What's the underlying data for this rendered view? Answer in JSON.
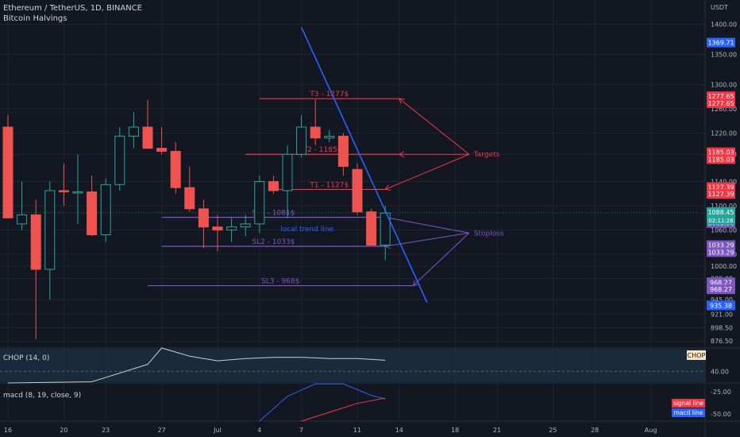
{
  "header": {
    "symbol": "Ethereum / TetherUS, 1D, BINANCE",
    "indicator": "Bitcoin Halvings",
    "currency": "USDT"
  },
  "colors": {
    "bg": "#131722",
    "grid": "#1f2433",
    "up": "#26a69a",
    "down": "#ef5350",
    "target": "#f23645",
    "stop": "#7e57c2",
    "trend": "#2962ff",
    "axis_text": "#b2b5be",
    "chop_fill": "#1c3142",
    "chop_line": "#c8ccd6",
    "signal": "#f23645",
    "macd": "#2962ff"
  },
  "chart_data": {
    "type": "candlestick",
    "ylim": [
      865,
      1440
    ],
    "y_ticks": [
      1400,
      1350,
      1300,
      1260,
      1220,
      1185,
      1140,
      1100,
      1060,
      1020,
      1000,
      980,
      945,
      921,
      898.5,
      876.5
    ],
    "y_tick_labels": [
      "1400.00",
      "1350.00",
      "1300.00",
      "1260.00",
      "1220.00",
      "1185.03",
      "1140.00",
      "1100.00",
      "1060.00",
      "1020.00",
      "1000.00",
      "980.00",
      "945.00",
      "921.00",
      "898.50",
      "876.50"
    ],
    "x_labels": [
      {
        "label": "16",
        "day": -1
      },
      {
        "label": "20",
        "day": 3
      },
      {
        "label": "23",
        "day": 6
      },
      {
        "label": "27",
        "day": 10
      },
      {
        "label": "Jul",
        "day": 14
      },
      {
        "label": "4",
        "day": 17
      },
      {
        "label": "7",
        "day": 20
      },
      {
        "label": "11",
        "day": 24
      },
      {
        "label": "14",
        "day": 27
      },
      {
        "label": "18",
        "day": 31
      },
      {
        "label": "21",
        "day": 34
      },
      {
        "label": "25",
        "day": 38
      },
      {
        "label": "28",
        "day": 41
      },
      {
        "label": "Aug",
        "day": 45
      }
    ],
    "candles": [
      {
        "day": -1,
        "o": 1230,
        "h": 1250,
        "l": 1080,
        "c": 1080
      },
      {
        "day": 0,
        "o": 1070,
        "h": 1140,
        "l": 1060,
        "c": 1085
      },
      {
        "day": 1,
        "o": 1085,
        "h": 1110,
        "l": 880,
        "c": 995
      },
      {
        "day": 2,
        "o": 995,
        "h": 1140,
        "l": 945,
        "c": 1125
      },
      {
        "day": 3,
        "o": 1125,
        "h": 1170,
        "l": 1100,
        "c": 1123
      },
      {
        "day": 4,
        "o": 1123,
        "h": 1185,
        "l": 1070,
        "c": 1123
      },
      {
        "day": 5,
        "o": 1123,
        "h": 1150,
        "l": 1050,
        "c": 1052
      },
      {
        "day": 6,
        "o": 1052,
        "h": 1145,
        "l": 1040,
        "c": 1135
      },
      {
        "day": 7,
        "o": 1135,
        "h": 1230,
        "l": 1125,
        "c": 1215
      },
      {
        "day": 8,
        "o": 1215,
        "h": 1255,
        "l": 1195,
        "c": 1230
      },
      {
        "day": 9,
        "o": 1230,
        "h": 1275,
        "l": 1200,
        "c": 1195
      },
      {
        "day": 10,
        "o": 1195,
        "h": 1230,
        "l": 1185,
        "c": 1190
      },
      {
        "day": 11,
        "o": 1190,
        "h": 1205,
        "l": 1120,
        "c": 1130
      },
      {
        "day": 12,
        "o": 1130,
        "h": 1165,
        "l": 1090,
        "c": 1095
      },
      {
        "day": 13,
        "o": 1095,
        "h": 1110,
        "l": 1030,
        "c": 1065
      },
      {
        "day": 14,
        "o": 1065,
        "h": 1085,
        "l": 1025,
        "c": 1060
      },
      {
        "day": 15,
        "o": 1060,
        "h": 1080,
        "l": 1040,
        "c": 1065
      },
      {
        "day": 16,
        "o": 1065,
        "h": 1085,
        "l": 1050,
        "c": 1070
      },
      {
        "day": 17,
        "o": 1070,
        "h": 1150,
        "l": 1055,
        "c": 1140
      },
      {
        "day": 18,
        "o": 1140,
        "h": 1150,
        "l": 1120,
        "c": 1125
      },
      {
        "day": 19,
        "o": 1125,
        "h": 1200,
        "l": 1080,
        "c": 1185
      },
      {
        "day": 20,
        "o": 1185,
        "h": 1250,
        "l": 1180,
        "c": 1230
      },
      {
        "day": 21,
        "o": 1230,
        "h": 1275,
        "l": 1200,
        "c": 1212
      },
      {
        "day": 22,
        "o": 1212,
        "h": 1225,
        "l": 1205,
        "c": 1215
      },
      {
        "day": 23,
        "o": 1215,
        "h": 1220,
        "l": 1150,
        "c": 1165
      },
      {
        "day": 24,
        "o": 1160,
        "h": 1170,
        "l": 1085,
        "c": 1090
      },
      {
        "day": 25,
        "o": 1090,
        "h": 1095,
        "l": 1035,
        "c": 1035
      },
      {
        "day": 26,
        "o": 1035,
        "h": 1100,
        "l": 1010,
        "c": 1088
      }
    ],
    "levels": [
      {
        "label": "T3 - 1277$",
        "price": 1277,
        "from_day": 17,
        "to_day": 27,
        "kind": "target"
      },
      {
        "label": "T2 - 1185$",
        "price": 1185,
        "from_day": 16,
        "to_day": 27,
        "kind": "target"
      },
      {
        "label": "T1 - 1127$",
        "price": 1127,
        "from_day": 18,
        "to_day": 26,
        "kind": "target"
      },
      {
        "label": "SL1 - 1081$",
        "price": 1081,
        "from_day": 10,
        "to_day": 26,
        "kind": "stop"
      },
      {
        "label": "SL2 - 1033$",
        "price": 1033,
        "from_day": 10,
        "to_day": 26,
        "kind": "stop"
      },
      {
        "label": "SL3 - 968$",
        "price": 968,
        "from_day": 9,
        "to_day": 28,
        "kind": "stop"
      }
    ],
    "price_tags": [
      {
        "label": "1369.71",
        "price": 1369.71,
        "kind": "trend"
      },
      {
        "label": "1277.65",
        "price": 1281,
        "kind": "target"
      },
      {
        "label": "1277.65",
        "price": 1269.5,
        "kind": "target"
      },
      {
        "label": "1185.03",
        "price": 1188.5,
        "kind": "target"
      },
      {
        "label": "1185.03",
        "price": 1177,
        "kind": "target"
      },
      {
        "label": "1127.39",
        "price": 1131,
        "kind": "target"
      },
      {
        "label": "1127.39",
        "price": 1119.5,
        "kind": "target"
      },
      {
        "label": "1081.90",
        "price": 1083,
        "kind": "stop"
      },
      {
        "label": "1081.90",
        "price": 1071.5,
        "kind": "stop"
      },
      {
        "label": "1033.29",
        "price": 1035,
        "kind": "stop"
      },
      {
        "label": "1033.29",
        "price": 1023.5,
        "kind": "stop"
      },
      {
        "label": "968.27",
        "price": 973.5,
        "kind": "stop"
      },
      {
        "label": "968.27",
        "price": 962,
        "kind": "stop"
      },
      {
        "label": "935.38",
        "price": 935.38,
        "kind": "trend"
      }
    ],
    "current_price": {
      "label": "1088.45",
      "countdown": "02:11:26",
      "price": 1088.45
    },
    "trend_line": {
      "label": "local trend line",
      "start": {
        "day": 20,
        "price": 1395
      },
      "end": {
        "day": 29,
        "price": 940
      }
    },
    "callouts": [
      {
        "label": "Targets",
        "price": 1185,
        "day": 32
      },
      {
        "label": "Stoploss",
        "price": 1055,
        "day": 32
      }
    ],
    "panes": [
      {
        "name": "CHOP (14, 0)",
        "tag": "CHOP",
        "axis_label": "40.00",
        "ylim": [
          30,
          60
        ],
        "line": [
          [
            -1,
            30
          ],
          [
            5,
            31
          ],
          [
            9,
            46
          ],
          [
            10,
            61
          ],
          [
            12,
            53
          ],
          [
            14,
            49
          ],
          [
            16,
            51
          ],
          [
            18,
            52
          ],
          [
            20,
            52
          ],
          [
            22,
            51
          ],
          [
            24,
            51
          ],
          [
            26,
            49.5
          ]
        ]
      },
      {
        "name": "macd (8, 19, close, 9)",
        "axis_labels": [
          "-25.00",
          "-50.00"
        ],
        "axis_values": [
          -25,
          -50
        ],
        "ylim": [
          -58,
          -15
        ],
        "legend": [
          "signal line",
          "macd line"
        ],
        "macd": [
          [
            17,
            -58
          ],
          [
            19,
            -30
          ],
          [
            21,
            -16
          ],
          [
            23,
            -16
          ],
          [
            25,
            -29
          ],
          [
            26,
            -33
          ]
        ],
        "signal": [
          [
            20,
            -58
          ],
          [
            22,
            -48
          ],
          [
            24,
            -38
          ],
          [
            26,
            -32
          ]
        ]
      }
    ]
  }
}
